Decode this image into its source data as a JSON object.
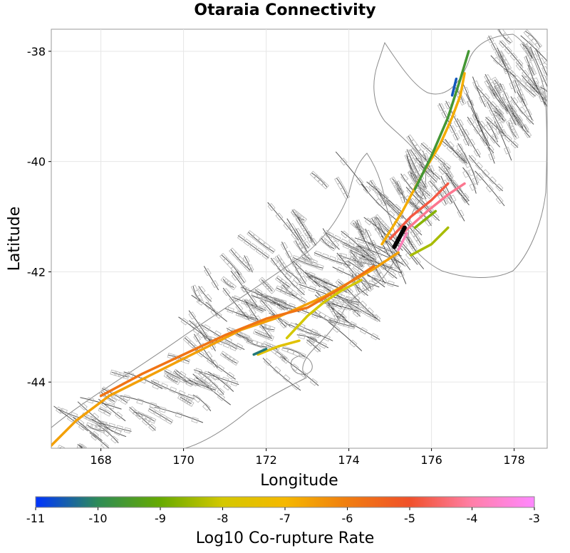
{
  "title": "Otaraia Connectivity",
  "chart_data": {
    "type": "map",
    "title": "Otaraia Connectivity",
    "xlabel": "Longitude",
    "ylabel": "Latitude",
    "xlim": [
      166.8,
      178.8
    ],
    "ylim": [
      -45.2,
      -37.6
    ],
    "x_ticks": [
      168,
      170,
      172,
      174,
      176,
      178
    ],
    "y_ticks": [
      -38,
      -40,
      -42,
      -44
    ],
    "colorbar": {
      "label": "Log10 Co-rupture Rate",
      "range": [
        -11,
        -3
      ],
      "ticks": [
        -11,
        -10,
        -9,
        -8,
        -7,
        -6,
        -5,
        -4,
        -3
      ],
      "stops": [
        "#0033ff",
        "#2e8b57",
        "#66aa00",
        "#d4c800",
        "#f5b800",
        "#f07d10",
        "#f0502a",
        "#ff7fa8",
        "#ff88ff"
      ]
    },
    "highlighted_fault": {
      "color": "#000000",
      "lon": [
        175.1,
        175.35
      ],
      "lat": [
        -41.55,
        -41.2
      ]
    },
    "rupture_traces": [
      {
        "log10_rate": -6.6,
        "lon": [
          166.8,
          167.4,
          168.2,
          169.0,
          169.8,
          170.6,
          171.4,
          172.2,
          172.8,
          173.4,
          174.0,
          174.6,
          175.2
        ],
        "lat": [
          -45.15,
          -44.7,
          -44.25,
          -43.95,
          -43.65,
          -43.35,
          -43.05,
          -42.85,
          -42.65,
          -42.45,
          -42.2,
          -41.95,
          -41.65
        ]
      },
      {
        "log10_rate": -5.8,
        "lon": [
          168.0,
          169.0,
          170.0,
          171.0,
          172.0,
          173.0,
          173.8,
          174.6
        ],
        "lat": [
          -44.25,
          -43.85,
          -43.5,
          -43.15,
          -42.85,
          -42.65,
          -42.3,
          -41.9
        ]
      },
      {
        "log10_rate": -6.8,
        "lon": [
          174.8,
          175.3,
          175.8,
          176.2,
          176.5,
          176.7,
          176.8
        ],
        "lat": [
          -41.5,
          -40.9,
          -40.2,
          -39.7,
          -39.2,
          -38.8,
          -38.4
        ]
      },
      {
        "log10_rate": -9.6,
        "lon": [
          175.6,
          176.0,
          176.4,
          176.7,
          176.9
        ],
        "lat": [
          -40.5,
          -39.9,
          -39.2,
          -38.5,
          -38.0
        ]
      },
      {
        "log10_rate": -10.6,
        "lon": [
          176.5,
          176.6
        ],
        "lat": [
          -38.8,
          -38.5
        ]
      },
      {
        "log10_rate": -8.0,
        "lon": [
          172.5,
          173.0,
          173.4,
          173.8,
          174.3
        ],
        "lat": [
          -43.2,
          -42.8,
          -42.55,
          -42.35,
          -42.15
        ]
      },
      {
        "log10_rate": -7.6,
        "lon": [
          171.8,
          172.3,
          172.8
        ],
        "lat": [
          -43.5,
          -43.35,
          -43.25
        ]
      },
      {
        "log10_rate": -10.2,
        "lon": [
          171.7,
          172.0
        ],
        "lat": [
          -43.5,
          -43.4
        ]
      },
      {
        "log10_rate": -4.8,
        "lon": [
          175.0,
          175.5,
          176.0,
          176.4
        ],
        "lat": [
          -41.4,
          -41.0,
          -40.7,
          -40.4
        ]
      },
      {
        "log10_rate": -4.2,
        "lon": [
          175.3,
          175.9,
          176.4,
          176.8
        ],
        "lat": [
          -41.3,
          -40.9,
          -40.6,
          -40.4
        ]
      },
      {
        "log10_rate": -3.8,
        "lon": [
          175.2,
          175.4
        ],
        "lat": [
          -41.6,
          -41.3
        ]
      },
      {
        "log10_rate": -8.4,
        "lon": [
          175.5,
          176.0,
          176.4
        ],
        "lat": [
          -41.7,
          -41.5,
          -41.2
        ]
      },
      {
        "log10_rate": -8.7,
        "lon": [
          175.6,
          176.1
        ],
        "lat": [
          -41.2,
          -40.9
        ]
      }
    ]
  }
}
